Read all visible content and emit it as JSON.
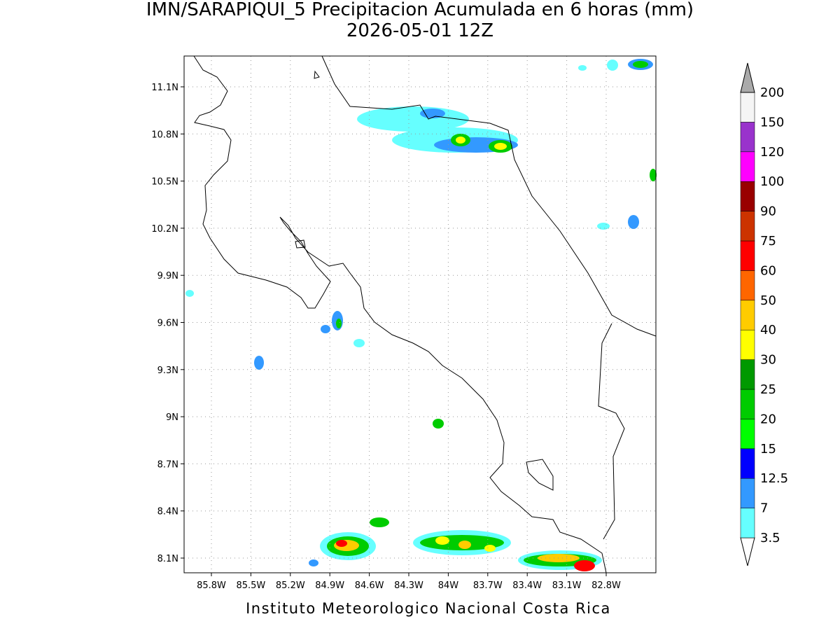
{
  "title": "IMN/SARAPIQUI_5 Precipitacion Acumulada en 6 horas (mm)",
  "subtitle": "2026-05-01 12Z",
  "lon_labels": [
    "85.8W",
    "85.5W",
    "85.2W",
    "84.9W",
    "84.6W",
    "84.3W",
    "84W",
    "83.7W",
    "83.4W",
    "83.1W",
    "82.8W"
  ],
  "lat_labels": [
    "11.1N",
    "10.8N",
    "10.5N",
    "10.2N",
    "9.9N",
    "9.6N",
    "9.3N",
    "9N",
    "8.7N",
    "8.4N",
    "8.1N"
  ],
  "legend": {
    "labels": [
      3.5,
      7,
      12.5,
      15,
      20,
      25,
      30,
      40,
      50,
      60,
      75,
      90,
      100,
      120,
      150,
      200
    ],
    "colors": [
      "#66ffff",
      "#3399ff",
      "#0000ff",
      "#00ff00",
      "#00cc00",
      "#009900",
      "#ffff00",
      "#ffcc00",
      "#ff6600",
      "#ff0000",
      "#cc3300",
      "#990000",
      "#ff00ff",
      "#9933cc",
      "#f5f5f5"
    ]
  },
  "footer": "Instituto Meteorologico Nacional Costa Rica"
}
